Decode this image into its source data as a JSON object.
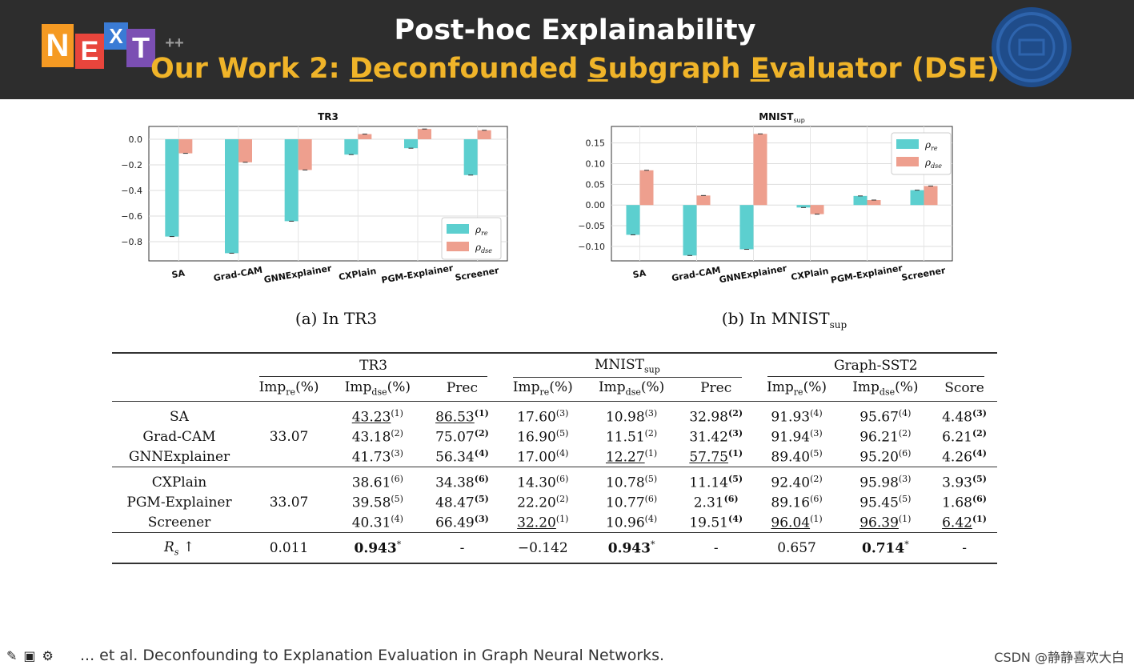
{
  "header": {
    "logo_letters": [
      "N",
      "E",
      "X",
      "T"
    ],
    "logo_suffix": "++",
    "title": "Post-hoc Explainability",
    "subtitle_parts": [
      "Our Work 2: ",
      "D",
      "econfounded ",
      "S",
      "ubgraph ",
      "E",
      "valuator (DSE)"
    ]
  },
  "chart_data": [
    {
      "type": "bar",
      "title": "TR3",
      "categories": [
        "SA",
        "Grad-CAM",
        "GNNExplainer",
        "CXPlain",
        "PGM-Explainer",
        "Screener"
      ],
      "series": [
        {
          "name": "ρre",
          "color": "#5ccfcf",
          "values": [
            -0.76,
            -0.89,
            -0.64,
            -0.12,
            -0.07,
            -0.28
          ]
        },
        {
          "name": "ρdse",
          "color": "#ee9f8e",
          "values": [
            -0.11,
            -0.18,
            -0.24,
            0.04,
            0.08,
            0.07
          ]
        }
      ],
      "yticks": [
        0.0,
        -0.2,
        -0.4,
        -0.6,
        -0.8
      ],
      "ytick_labels": [
        "0.0",
        "−0.2",
        "−0.4",
        "−0.6",
        "−0.8"
      ],
      "ylim": [
        -0.95,
        0.1
      ],
      "legend": "bottom-right",
      "legend_labels": [
        {
          "main": "ρ",
          "sub": "re"
        },
        {
          "main": "ρ",
          "sub": "dse"
        }
      ],
      "caption_main": "(a) In TR3",
      "caption_sub": ""
    },
    {
      "type": "bar",
      "title": "MNIST",
      "title_sub": "sup",
      "categories": [
        "SA",
        "Grad-CAM",
        "GNNExplainer",
        "CXPlain",
        "PGM-Explainer",
        "Screener"
      ],
      "series": [
        {
          "name": "ρre",
          "color": "#5ccfcf",
          "values": [
            -0.072,
            -0.122,
            -0.107,
            -0.006,
            0.022,
            0.036
          ]
        },
        {
          "name": "ρdse",
          "color": "#ee9f8e",
          "values": [
            0.084,
            0.023,
            0.172,
            -0.022,
            0.012,
            0.046
          ]
        }
      ],
      "yticks": [
        0.15,
        0.1,
        0.05,
        0.0,
        -0.05,
        -0.1
      ],
      "ytick_labels": [
        "0.15",
        "0.10",
        "0.05",
        "0.00",
        "−0.05",
        "−0.10"
      ],
      "ylim": [
        -0.135,
        0.19
      ],
      "legend": "top-right",
      "legend_labels": [
        {
          "main": "ρ",
          "sub": "re"
        },
        {
          "main": "ρ",
          "sub": "dse"
        }
      ],
      "caption_main": "(b) In MNIST",
      "caption_sub": "sup"
    }
  ],
  "table": {
    "datasets": [
      {
        "name": "TR3",
        "sub": ""
      },
      {
        "name": "MNIST",
        "sub": "sup"
      },
      {
        "name": "Graph-SST2",
        "sub": ""
      }
    ],
    "column_headers": [
      {
        "main": "Imp",
        "sub": "re",
        "tail": "(%)"
      },
      {
        "main": "Imp",
        "sub": "dse",
        "tail": "(%)"
      },
      {
        "main": "Prec",
        "sub": "",
        "tail": ""
      },
      {
        "main": "Imp",
        "sub": "re",
        "tail": "(%)"
      },
      {
        "main": "Imp",
        "sub": "dse",
        "tail": "(%)"
      },
      {
        "main": "Prec",
        "sub": "",
        "tail": ""
      },
      {
        "main": "Imp",
        "sub": "re",
        "tail": "(%)"
      },
      {
        "main": "Imp",
        "sub": "dse",
        "tail": "(%)"
      },
      {
        "main": "Score",
        "sub": "",
        "tail": ""
      }
    ],
    "groups": [
      {
        "shared_value": "33.07",
        "rows": [
          {
            "method": "SA",
            "cells": [
              {
                "v": "43.23",
                "r": "(1)",
                "u": true,
                "rb": false
              },
              {
                "v": "86.53",
                "r": "(1)",
                "u": true,
                "rb": true
              },
              {
                "v": "17.60",
                "r": "(3)",
                "u": false,
                "rb": false
              },
              {
                "v": "10.98",
                "r": "(3)",
                "u": false,
                "rb": false
              },
              {
                "v": "32.98",
                "r": "(2)",
                "u": false,
                "rb": true
              },
              {
                "v": "91.93",
                "r": "(4)",
                "u": false,
                "rb": false
              },
              {
                "v": "95.67",
                "r": "(4)",
                "u": false,
                "rb": false
              },
              {
                "v": "4.48",
                "r": "(3)",
                "u": false,
                "rb": true
              }
            ]
          },
          {
            "method": "Grad-CAM",
            "cells": [
              {
                "v": "43.18",
                "r": "(2)",
                "u": false,
                "rb": false
              },
              {
                "v": "75.07",
                "r": "(2)",
                "u": false,
                "rb": true
              },
              {
                "v": "16.90",
                "r": "(5)",
                "u": false,
                "rb": false
              },
              {
                "v": "11.51",
                "r": "(2)",
                "u": false,
                "rb": false
              },
              {
                "v": "31.42",
                "r": "(3)",
                "u": false,
                "rb": true
              },
              {
                "v": "91.94",
                "r": "(3)",
                "u": false,
                "rb": false
              },
              {
                "v": "96.21",
                "r": "(2)",
                "u": false,
                "rb": false
              },
              {
                "v": "6.21",
                "r": "(2)",
                "u": false,
                "rb": true
              }
            ]
          },
          {
            "method": "GNNExplainer",
            "cells": [
              {
                "v": "41.73",
                "r": "(3)",
                "u": false,
                "rb": false
              },
              {
                "v": "56.34",
                "r": "(4)",
                "u": false,
                "rb": true
              },
              {
                "v": "17.00",
                "r": "(4)",
                "u": false,
                "rb": false
              },
              {
                "v": "12.27",
                "r": "(1)",
                "u": true,
                "rb": false
              },
              {
                "v": "57.75",
                "r": "(1)",
                "u": true,
                "rb": true
              },
              {
                "v": "89.40",
                "r": "(5)",
                "u": false,
                "rb": false
              },
              {
                "v": "95.20",
                "r": "(6)",
                "u": false,
                "rb": false
              },
              {
                "v": "4.26",
                "r": "(4)",
                "u": false,
                "rb": true
              }
            ]
          }
        ]
      },
      {
        "shared_value": "33.07",
        "rows": [
          {
            "method": "CXPlain",
            "cells": [
              {
                "v": "38.61",
                "r": "(6)",
                "u": false,
                "rb": false
              },
              {
                "v": "34.38",
                "r": "(6)",
                "u": false,
                "rb": true
              },
              {
                "v": "14.30",
                "r": "(6)",
                "u": false,
                "rb": false
              },
              {
                "v": "10.78",
                "r": "(5)",
                "u": false,
                "rb": false
              },
              {
                "v": "11.14",
                "r": "(5)",
                "u": false,
                "rb": true
              },
              {
                "v": "92.40",
                "r": "(2)",
                "u": false,
                "rb": false
              },
              {
                "v": "95.98",
                "r": "(3)",
                "u": false,
                "rb": false
              },
              {
                "v": "3.93",
                "r": "(5)",
                "u": false,
                "rb": true
              }
            ]
          },
          {
            "method": "PGM-Explainer",
            "cells": [
              {
                "v": "39.58",
                "r": "(5)",
                "u": false,
                "rb": false
              },
              {
                "v": "48.47",
                "r": "(5)",
                "u": false,
                "rb": true
              },
              {
                "v": "22.20",
                "r": "(2)",
                "u": false,
                "rb": false
              },
              {
                "v": "10.77",
                "r": "(6)",
                "u": false,
                "rb": false
              },
              {
                "v": "2.31",
                "r": "(6)",
                "u": false,
                "rb": true
              },
              {
                "v": "89.16",
                "r": "(6)",
                "u": false,
                "rb": false
              },
              {
                "v": "95.45",
                "r": "(5)",
                "u": false,
                "rb": false
              },
              {
                "v": "1.68",
                "r": "(6)",
                "u": false,
                "rb": true
              }
            ]
          },
          {
            "method": "Screener",
            "cells": [
              {
                "v": "40.31",
                "r": "(4)",
                "u": false,
                "rb": false
              },
              {
                "v": "66.49",
                "r": "(3)",
                "u": false,
                "rb": true
              },
              {
                "v": "32.20",
                "r": "(1)",
                "u": true,
                "rb": false
              },
              {
                "v": "10.96",
                "r": "(4)",
                "u": false,
                "rb": false
              },
              {
                "v": "19.51",
                "r": "(4)",
                "u": false,
                "rb": true
              },
              {
                "v": "96.04",
                "r": "(1)",
                "u": true,
                "rb": false
              },
              {
                "v": "96.39",
                "r": "(1)",
                "u": true,
                "rb": false
              },
              {
                "v": "6.42",
                "r": "(1)",
                "u": true,
                "rb": true
              }
            ]
          }
        ]
      }
    ],
    "rs_row": {
      "label_main": "R",
      "label_sub": "s",
      "label_arrow": "↑",
      "cells": [
        {
          "v": "0.011",
          "bold": false,
          "star": ""
        },
        {
          "v": "0.943",
          "bold": true,
          "star": "*"
        },
        {
          "v": "-",
          "bold": false,
          "star": ""
        },
        {
          "v": "−0.142",
          "bold": false,
          "star": ""
        },
        {
          "v": "0.943",
          "bold": true,
          "star": "*"
        },
        {
          "v": "-",
          "bold": false,
          "star": ""
        },
        {
          "v": "0.657",
          "bold": false,
          "star": ""
        },
        {
          "v": "0.714",
          "bold": true,
          "star": "*"
        },
        {
          "v": "-",
          "bold": false,
          "star": ""
        }
      ]
    }
  },
  "footer": {
    "text": "... et al. Deconfounding to Explanation Evaluation in Graph Neural Networks.",
    "watermark": "CSDN @静静喜欢大白"
  },
  "colors": {
    "header_bg": "#2d2d2d",
    "title": "#ffffff",
    "subtitle": "#f0b429",
    "re": "#5ccfcf",
    "dse": "#ee9f8e"
  }
}
